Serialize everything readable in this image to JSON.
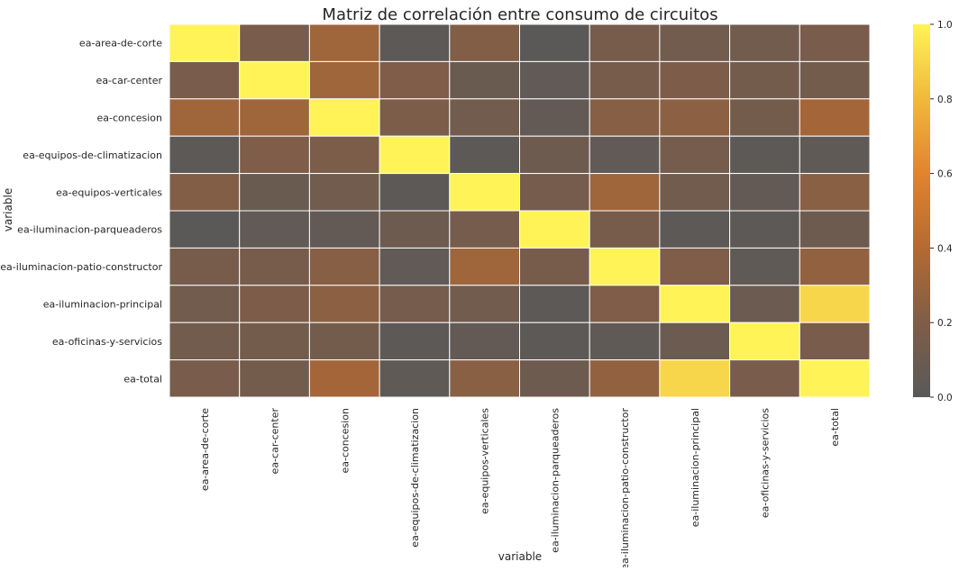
{
  "chart_data": {
    "type": "heatmap",
    "title": "Matriz de correlación entre consumo de circuitos",
    "xlabel": "variable",
    "ylabel": "variable",
    "x_categories": [
      "ea-area-de-corte",
      "ea-car-center",
      "ea-concesion",
      "ea-equipos-de-climatizacion",
      "ea-equipos-verticales",
      "ea-iluminacion-parqueaderos",
      "ea-iluminacion-patio-constructor",
      "ea-iluminacion-principal",
      "ea-oficinas-y-servicios",
      "ea-total"
    ],
    "y_categories": [
      "ea-area-de-corte",
      "ea-car-center",
      "ea-concesion",
      "ea-equipos-de-climatizacion",
      "ea-equipos-verticales",
      "ea-iluminacion-parqueaderos",
      "ea-iluminacion-patio-constructor",
      "ea-iluminacion-principal",
      "ea-oficinas-y-servicios",
      "ea-total"
    ],
    "values": [
      [
        1.0,
        0.17,
        0.32,
        0.02,
        0.21,
        0.01,
        0.16,
        0.13,
        0.13,
        0.17
      ],
      [
        0.17,
        1.0,
        0.32,
        0.2,
        0.09,
        0.04,
        0.16,
        0.19,
        0.14,
        0.14
      ],
      [
        0.32,
        0.32,
        1.0,
        0.18,
        0.13,
        0.05,
        0.23,
        0.25,
        0.14,
        0.34
      ],
      [
        0.02,
        0.2,
        0.18,
        1.0,
        0.02,
        0.11,
        0.04,
        0.15,
        0.02,
        0.03
      ],
      [
        0.21,
        0.09,
        0.13,
        0.02,
        1.0,
        0.15,
        0.32,
        0.13,
        0.05,
        0.24
      ],
      [
        0.01,
        0.04,
        0.05,
        0.11,
        0.15,
        1.0,
        0.16,
        0.02,
        0.02,
        0.11
      ],
      [
        0.16,
        0.16,
        0.23,
        0.04,
        0.32,
        0.16,
        1.0,
        0.2,
        0.03,
        0.27
      ],
      [
        0.13,
        0.19,
        0.25,
        0.15,
        0.13,
        0.02,
        0.2,
        1.0,
        0.1,
        0.9
      ],
      [
        0.13,
        0.14,
        0.14,
        0.02,
        0.05,
        0.02,
        0.03,
        0.1,
        1.0,
        0.17
      ],
      [
        0.17,
        0.14,
        0.34,
        0.03,
        0.24,
        0.11,
        0.27,
        0.9,
        0.17,
        1.0
      ]
    ],
    "vmin": 0.0,
    "vmax": 1.0,
    "colorbar_ticks": [
      "0.0",
      "0.2",
      "0.4",
      "0.6",
      "0.8",
      "1.0"
    ],
    "colormap": [
      "#595959",
      "#7f5d48",
      "#b46a32",
      "#e08430",
      "#f1b83e",
      "#fff357"
    ],
    "grid_line_color": "#ffffff"
  }
}
